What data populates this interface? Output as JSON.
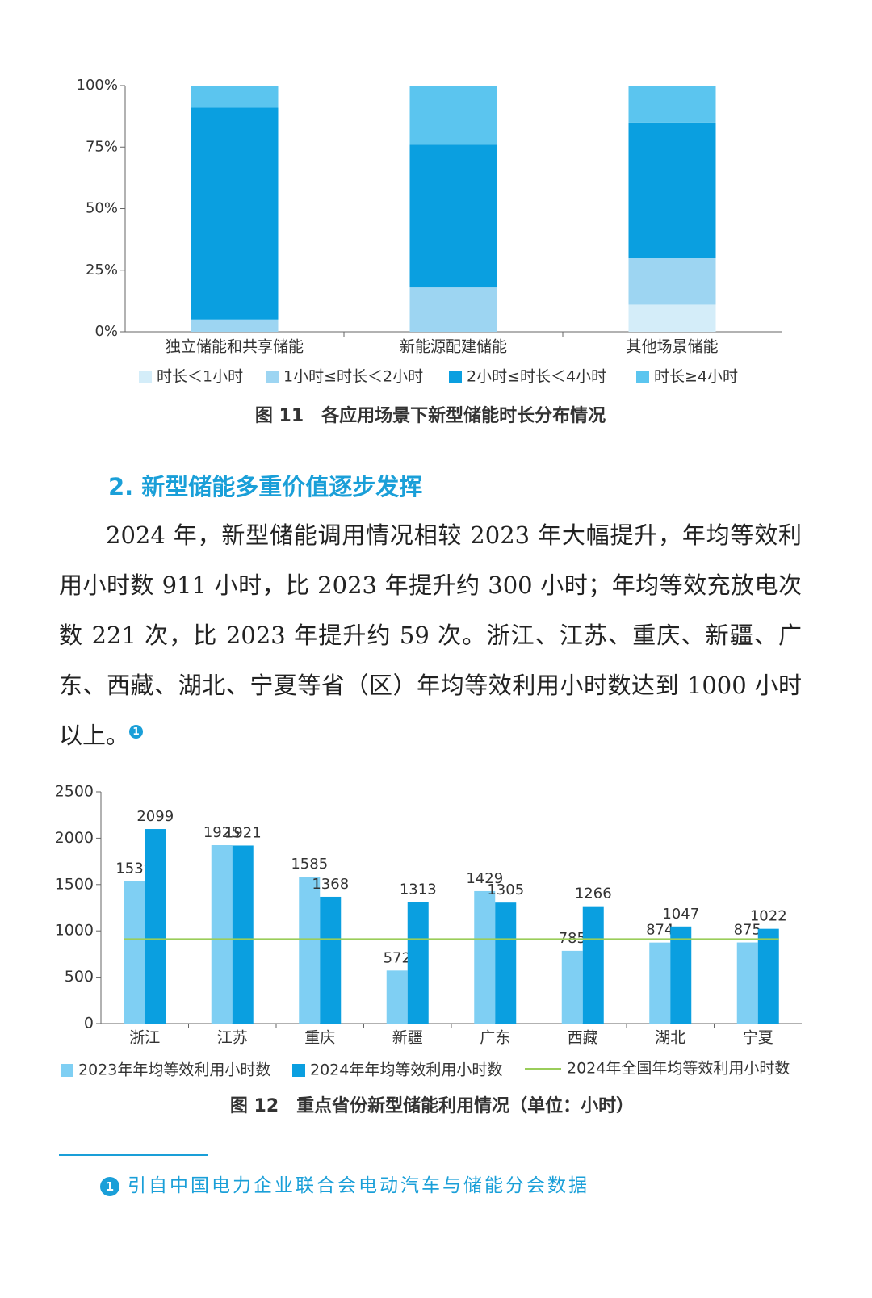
{
  "chart_data": [
    {
      "type": "bar",
      "stacked": true,
      "categories": [
        "独立储能和共享储能",
        "新能源配建储能",
        "其他场景储能"
      ],
      "series": [
        {
          "name": "时长＜1小时",
          "color": "#d4edf9",
          "values": [
            0,
            0,
            11
          ]
        },
        {
          "name": "1小时≤时长＜2小时",
          "color": "#9dd5f2",
          "values": [
            5,
            18,
            19
          ]
        },
        {
          "name": "2小时≤时长＜4小时",
          "color": "#0a9fe0",
          "values": [
            86,
            58,
            55
          ]
        },
        {
          "name": "时长≥4小时",
          "color": "#5bc5ef",
          "values": [
            9,
            24,
            15
          ]
        }
      ],
      "ylim": [
        0,
        100
      ],
      "yticks": [
        {
          "value": 0,
          "label": "0%"
        },
        {
          "value": 25,
          "label": "25%"
        },
        {
          "value": 50,
          "label": "50%"
        },
        {
          "value": 75,
          "label": "75%"
        },
        {
          "value": 100,
          "label": "100%"
        }
      ],
      "caption": "图 11　各应用场景下新型储能时长分布情况"
    },
    {
      "type": "bar",
      "stacked": false,
      "categories": [
        "浙江",
        "江苏",
        "重庆",
        "新疆",
        "广东",
        "西藏",
        "湖北",
        "宁夏"
      ],
      "series": [
        {
          "name": "2023年年均等效利用小时数",
          "color": "#7fcff3",
          "values": [
            1539,
            1925,
            1585,
            572,
            1429,
            785,
            874,
            875
          ]
        },
        {
          "name": "2024年年均等效利用小时数",
          "color": "#0a9fe0",
          "values": [
            2099,
            1921,
            1368,
            1313,
            1305,
            1266,
            1047,
            1022
          ]
        }
      ],
      "reference_lines": [
        {
          "name": "2024年全国年均等效利用小时数",
          "color": "#9acd5a",
          "value": 911
        }
      ],
      "ylim": [
        0,
        2500
      ],
      "yticks": [
        0,
        500,
        1000,
        1500,
        2000,
        2500
      ],
      "caption": "图 12　重点省份新型储能利用情况（单位：小时）"
    }
  ],
  "section": {
    "heading": "2. 新型储能多重价值逐步发挥",
    "paragraph": "2024 年，新型储能调用情况相较 2023 年大幅提升，年均等效利用小时数 911 小时，比 2023 年提升约 300 小时；年均等效充放电次数 221 次，比 2023 年提升约 59 次。浙江、江苏、重庆、新疆、广东、西藏、湖北、宁夏等省（区）年均等效利用小时数达到 1000 小时以上。",
    "note_ref": "1"
  },
  "footnote": {
    "marker": "1",
    "text": "引自中国电力企业联合会电动汽车与储能分会数据"
  }
}
